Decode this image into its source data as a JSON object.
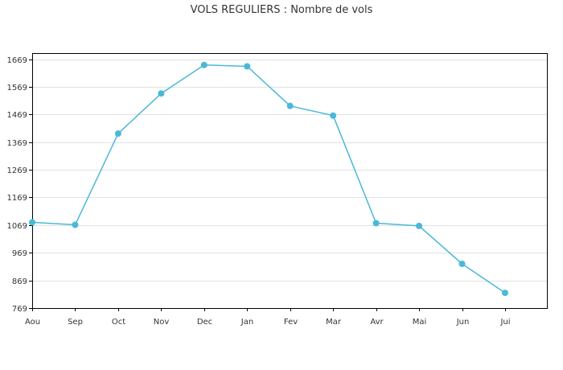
{
  "chart_data": {
    "type": "line",
    "title": "VOLS REGULIERS : Nombre de vols",
    "xlabel": "",
    "ylabel": "",
    "categories": [
      "Aou",
      "Sep",
      "Oct",
      "Nov",
      "Dec",
      "Jan",
      "Fev",
      "Mar",
      "Avr",
      "Mai",
      "Jun",
      "Jui"
    ],
    "series": [
      {
        "values": [
          1079,
          1070,
          1400,
          1545,
          1648,
          1643,
          1500,
          1465,
          1076,
          1066,
          929,
          824
        ]
      }
    ],
    "yticks": [
      769,
      869,
      969,
      1069,
      1169,
      1269,
      1369,
      1469,
      1569,
      1669
    ],
    "ylim": [
      769,
      1691
    ],
    "grid": true,
    "colors": {
      "series": "#4bb8d8",
      "grid": "#e2e2e2",
      "axis": "#000000"
    }
  }
}
